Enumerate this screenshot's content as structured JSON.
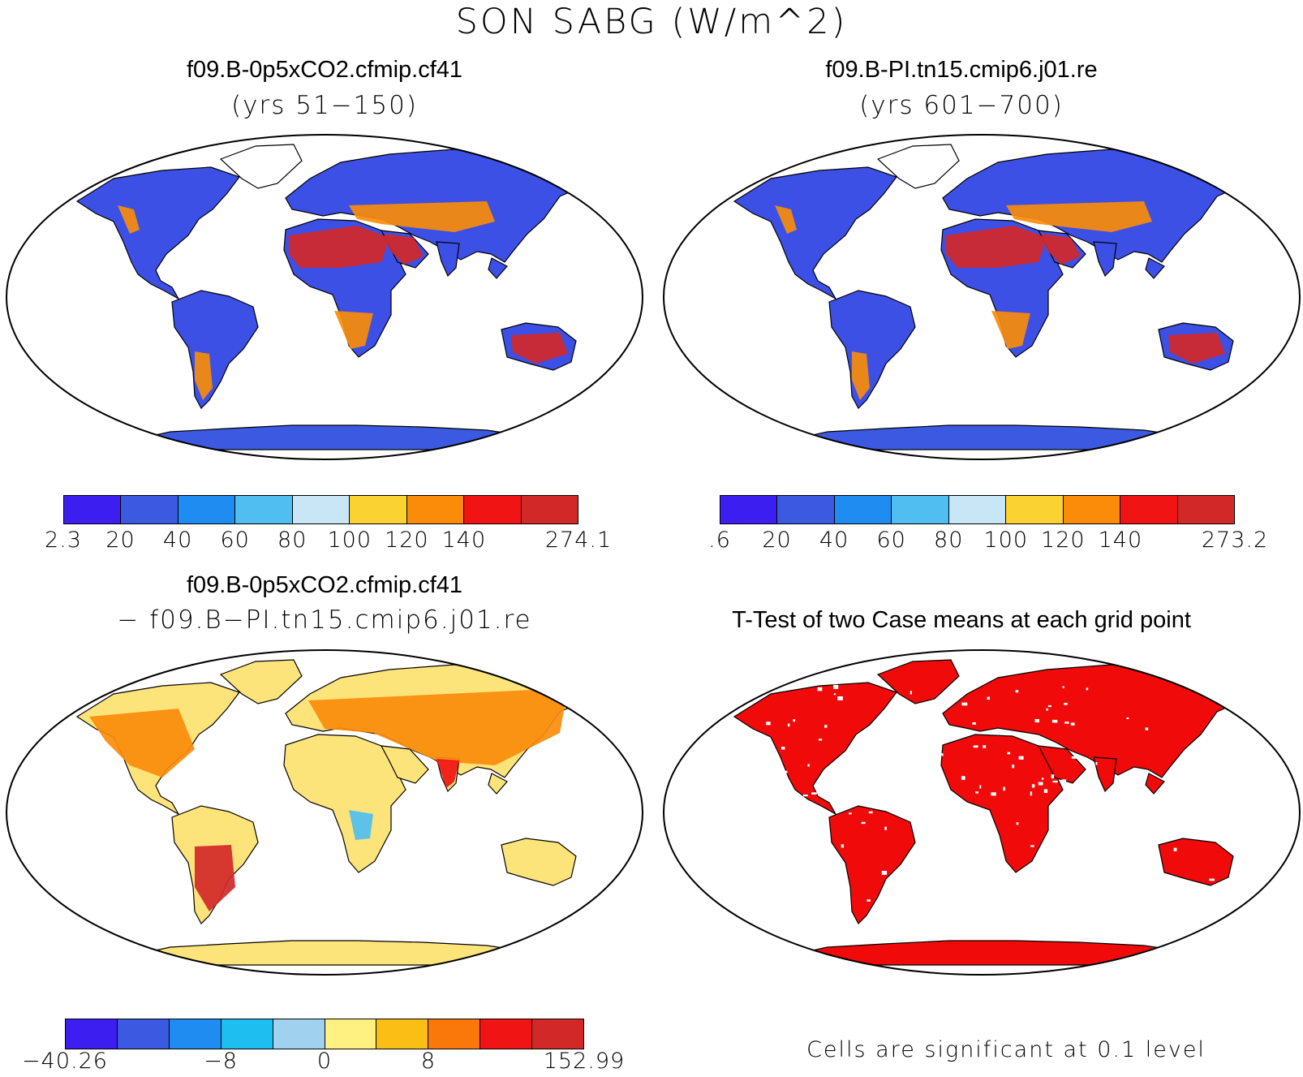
{
  "title": "SON SABG (W/m^2)",
  "panels": [
    {
      "id": "case1",
      "title": "f09.B-0p5xCO2.cfmip.cf41",
      "subtitle": "(yrs 51−150)",
      "colorbar": {
        "colors": [
          "#3c1ef0",
          "#3c5ae1",
          "#1e8cf0",
          "#50bef0",
          "#c8e6f5",
          "#fad232",
          "#fa8c0a",
          "#f01414",
          "#d22828"
        ],
        "tick_labels": [
          "2.3",
          "20",
          "40",
          "60",
          "80",
          "100",
          "120",
          "140",
          "274.1"
        ]
      }
    },
    {
      "id": "case2",
      "title": "f09.B-PI.tn15.cmip6.j01.re",
      "subtitle": "(yrs 601−700)",
      "colorbar": {
        "colors": [
          "#3c1ef0",
          "#3c5ae1",
          "#1e8cf0",
          "#50bef0",
          "#c8e6f5",
          "#fad232",
          "#fa8c0a",
          "#f01414",
          "#d22828"
        ],
        "tick_labels": [
          ".6",
          "20",
          "40",
          "60",
          "80",
          "100",
          "120",
          "140",
          "273.2"
        ]
      }
    },
    {
      "id": "diff",
      "title": "f09.B-0p5xCO2.cfmip.cf41",
      "subtitle": "− f09.B−PI.tn15.cmip6.j01.re",
      "colorbar": {
        "colors": [
          "#3c1ef0",
          "#3c5ae1",
          "#1e8cf0",
          "#1ebef0",
          "#a0d2f0",
          "#fff082",
          "#fabe14",
          "#fa780a",
          "#f01414",
          "#d22828"
        ],
        "tick_labels": [
          "−40.26",
          "−8",
          "0",
          "8",
          "152.99"
        ]
      }
    },
    {
      "id": "ttest",
      "title": "T-Test of two Case means at each grid point",
      "note": "Cells are significant at 0.1 level"
    }
  ],
  "styles": {
    "land_case": "#3c50e6",
    "land_diff": "#fde47a",
    "land_ttest": "#f00a0a",
    "antarctica_case": "#3c5ae1",
    "hot": "#d22828",
    "warm": "#fa8c0a",
    "ocean": "#ffffff"
  }
}
